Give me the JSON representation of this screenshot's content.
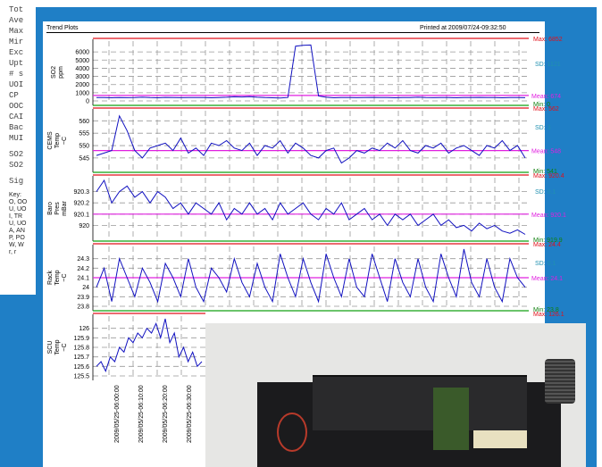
{
  "background_doc": {
    "lines": [
      "Tot",
      "Ave",
      "Max",
      "Mir",
      "Exc",
      "Upt",
      "# s",
      "UOI",
      "CP",
      "OOC",
      "CAI",
      "Bac",
      "MUI",
      "SO2",
      "SO2",
      "Sig"
    ],
    "key_lines": [
      "Key:",
      "O, OO",
      "U, UO",
      "I, TR",
      "U, UO",
      "A, AN",
      "P, PO",
      "W, W",
      "r, r"
    ]
  },
  "report": {
    "title": "Trend Plots",
    "printed": "Printed at 2009/07/24-09:32:50"
  },
  "chart_data": [
    {
      "type": "line",
      "ylabel": "SO2\nppm",
      "yticks": [
        "6000",
        "5000",
        "4000",
        "3000",
        "2000",
        "1000",
        "0"
      ],
      "ylim": [
        0,
        7000
      ],
      "max_label": "Max: 6852",
      "sd_label": "SD: 1121",
      "mean_label": "Mean: 674",
      "min_label": "Min: 0",
      "max": 6852,
      "mean": 674,
      "min": 0,
      "values": [
        420,
        400,
        380,
        420,
        390,
        410,
        450,
        400,
        380,
        430,
        410,
        390,
        420,
        400,
        410,
        380,
        420,
        450,
        500,
        480,
        520,
        450,
        400,
        380,
        350,
        420,
        6700,
        6800,
        6850,
        600,
        450,
        380,
        420,
        400,
        390,
        410,
        430,
        420,
        400,
        380,
        410,
        420,
        450,
        400,
        390,
        420,
        410,
        380,
        400,
        420,
        430,
        410,
        400,
        380,
        420,
        410,
        390
      ]
    },
    {
      "type": "line",
      "ylabel": "CEMS\nTemp\n~C",
      "yticks": [
        "560",
        "555",
        "550",
        "545"
      ],
      "ylim": [
        541,
        563
      ],
      "max_label": "Max: 562",
      "sd_label": "SD: 3",
      "mean_label": "Mean: 548",
      "min_label": "Min: 541",
      "max": 562,
      "mean": 548,
      "min": 541,
      "values": [
        546,
        547,
        548,
        562,
        556,
        548,
        545,
        549,
        550,
        551,
        548,
        553,
        547,
        549,
        546,
        551,
        550,
        552,
        549,
        548,
        551,
        546,
        550,
        549,
        552,
        547,
        551,
        549,
        546,
        545,
        548,
        549,
        543,
        545,
        548,
        547,
        549,
        548,
        551,
        549,
        552,
        548,
        547,
        550,
        549,
        551,
        547,
        549,
        550,
        548,
        546,
        550,
        549,
        552,
        548,
        550,
        545
      ]
    },
    {
      "type": "line",
      "ylabel": "Baro\nPres\nmBar",
      "yticks": [
        "920.3",
        "920.2",
        "920.1",
        "920"
      ],
      "ylim": [
        919.9,
        920.4
      ],
      "max_label": "Max: 920.4",
      "sd_label": "SD: 0.1",
      "mean_label": "Mean: 920.1",
      "min_label": "Min: 919.9",
      "max": 920.4,
      "mean": 920.1,
      "min": 919.9,
      "values": [
        920.3,
        920.4,
        920.2,
        920.3,
        920.35,
        920.25,
        920.3,
        920.2,
        920.3,
        920.25,
        920.15,
        920.2,
        920.1,
        920.2,
        920.15,
        920.1,
        920.2,
        920.05,
        920.15,
        920.1,
        920.2,
        920.1,
        920.15,
        920.05,
        920.2,
        920.1,
        920.15,
        920.2,
        920.1,
        920.05,
        920.15,
        920.1,
        920.2,
        920.05,
        920.1,
        920.15,
        920.05,
        920.1,
        920.0,
        920.1,
        920.05,
        920.1,
        920.0,
        920.05,
        920.1,
        920.0,
        920.05,
        919.98,
        920.0,
        919.95,
        920.02,
        919.97,
        920.0,
        919.95,
        919.93,
        919.96,
        919.92
      ]
    },
    {
      "type": "line",
      "ylabel": "Rack\nTemp\n~C",
      "yticks": [
        "24.3",
        "24.2",
        "24.1",
        "24",
        "23.9",
        "23.8"
      ],
      "ylim": [
        23.8,
        24.4
      ],
      "max_label": "Max: 24.4",
      "sd_label": "SD: 0.1",
      "mean_label": "Mean: 24.1",
      "min_label": "Min: 23.8",
      "max": 24.4,
      "mean": 24.1,
      "min": 23.8,
      "values": [
        24.0,
        24.2,
        23.85,
        24.3,
        24.1,
        23.9,
        24.2,
        24.05,
        23.85,
        24.25,
        24.1,
        23.9,
        24.3,
        24.0,
        23.85,
        24.2,
        24.1,
        23.95,
        24.3,
        24.05,
        23.9,
        24.25,
        24.0,
        23.85,
        24.35,
        24.1,
        23.9,
        24.3,
        24.05,
        23.85,
        24.35,
        24.1,
        23.9,
        24.3,
        24.0,
        23.9,
        24.35,
        24.1,
        23.85,
        24.3,
        24.05,
        23.9,
        24.3,
        24.0,
        23.85,
        24.35,
        24.1,
        23.9,
        24.4,
        24.05,
        23.9,
        24.3,
        24.0,
        23.85,
        24.3,
        24.1,
        24.0
      ]
    },
    {
      "type": "line",
      "ylabel": "SCU\nTemp\n~C",
      "yticks": [
        "126",
        "125.9",
        "125.8",
        "125.7",
        "125.6",
        "125.5"
      ],
      "ylim": [
        125.5,
        126.1
      ],
      "max_label": "Max: 126.1",
      "max": 126.1,
      "values": [
        125.6,
        125.65,
        125.55,
        125.7,
        125.65,
        125.8,
        125.75,
        125.9,
        125.85,
        125.95,
        125.9,
        126.0,
        125.95,
        126.05,
        125.9,
        126.1,
        125.85,
        125.95,
        125.7,
        125.8,
        125.65,
        125.75,
        125.6,
        125.65
      ]
    }
  ],
  "x_ticks": [
    "2009/05/25-06:00:00",
    "2009/05/25-06:10:00",
    "2009/05/25-06:20:00",
    "2009/05/25-06:30:00"
  ]
}
